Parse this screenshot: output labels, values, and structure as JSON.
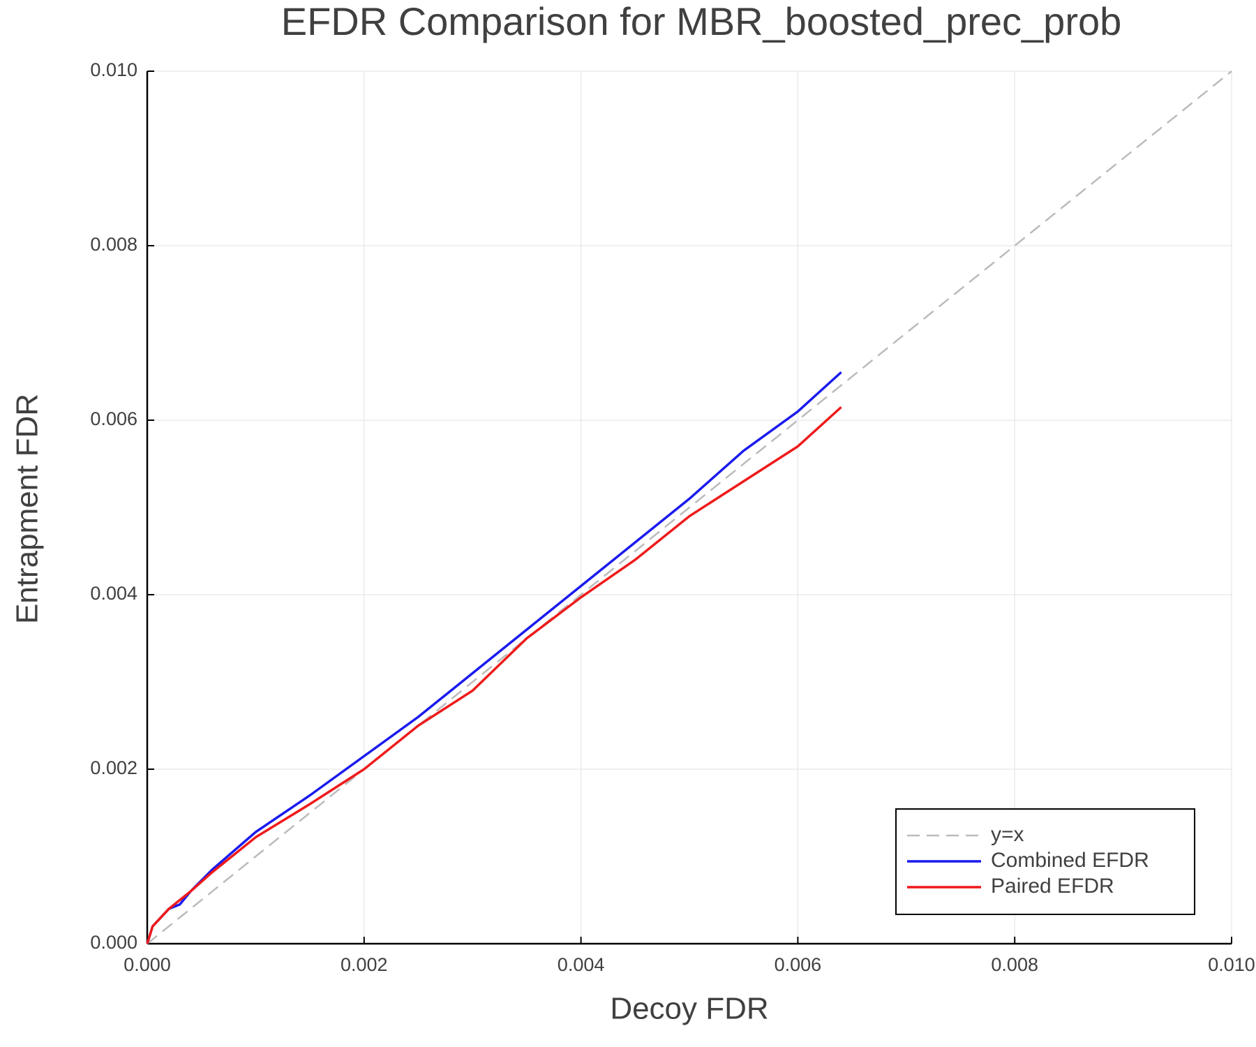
{
  "chart_data": {
    "type": "line",
    "title": "EFDR Comparison for MBR_boosted_prec_prob",
    "x_label": "Decoy FDR",
    "y_label": "Entrapment FDR",
    "xlim": [
      0,
      0.01
    ],
    "ylim": [
      0,
      0.01
    ],
    "xticks": [
      {
        "value": 0,
        "label": "0.000"
      },
      {
        "value": 0.002,
        "label": "0.002"
      },
      {
        "value": 0.004,
        "label": "0.004"
      },
      {
        "value": 0.006,
        "label": "0.006"
      },
      {
        "value": 0.008,
        "label": "0.008"
      },
      {
        "value": 0.01,
        "label": "0.010"
      }
    ],
    "yticks": [
      {
        "value": 0,
        "label": "0.000"
      },
      {
        "value": 0.002,
        "label": "0.002"
      },
      {
        "value": 0.004,
        "label": "0.004"
      },
      {
        "value": 0.006,
        "label": "0.006"
      },
      {
        "value": 0.008,
        "label": "0.008"
      },
      {
        "value": 0.01,
        "label": "0.010"
      }
    ],
    "grid": true,
    "legend": "bottom-right",
    "series": [
      {
        "name": "y=x",
        "color": "#bbbbbb",
        "style": "dashed",
        "x": [
          0,
          0.01
        ],
        "values": [
          0,
          0.01
        ]
      },
      {
        "name": "Combined EFDR",
        "color": "#1a1aee",
        "style": "solid",
        "x": [
          0,
          5e-05,
          0.0002,
          0.0003,
          0.0004,
          0.0006,
          0.001,
          0.0015,
          0.002,
          0.0025,
          0.003,
          0.0035,
          0.004,
          0.0045,
          0.005,
          0.0055,
          0.006,
          0.0064
        ],
        "values": [
          0,
          0.0002,
          0.0004,
          0.00045,
          0.0006,
          0.00085,
          0.00128,
          0.0017,
          0.00215,
          0.0026,
          0.0031,
          0.0036,
          0.0041,
          0.0046,
          0.0051,
          0.00565,
          0.0061,
          0.00655
        ]
      },
      {
        "name": "Paired EFDR",
        "color": "#ee1a1a",
        "style": "solid",
        "x": [
          0,
          5e-05,
          0.0002,
          0.0004,
          0.0006,
          0.001,
          0.0015,
          0.002,
          0.0025,
          0.003,
          0.0035,
          0.004,
          0.0045,
          0.005,
          0.0055,
          0.006,
          0.0064
        ],
        "values": [
          0,
          0.0002,
          0.0004,
          0.0006,
          0.00082,
          0.00122,
          0.0016,
          0.002,
          0.0025,
          0.0029,
          0.0035,
          0.00397,
          0.0044,
          0.0049,
          0.0053,
          0.0057,
          0.00615
        ]
      }
    ]
  }
}
